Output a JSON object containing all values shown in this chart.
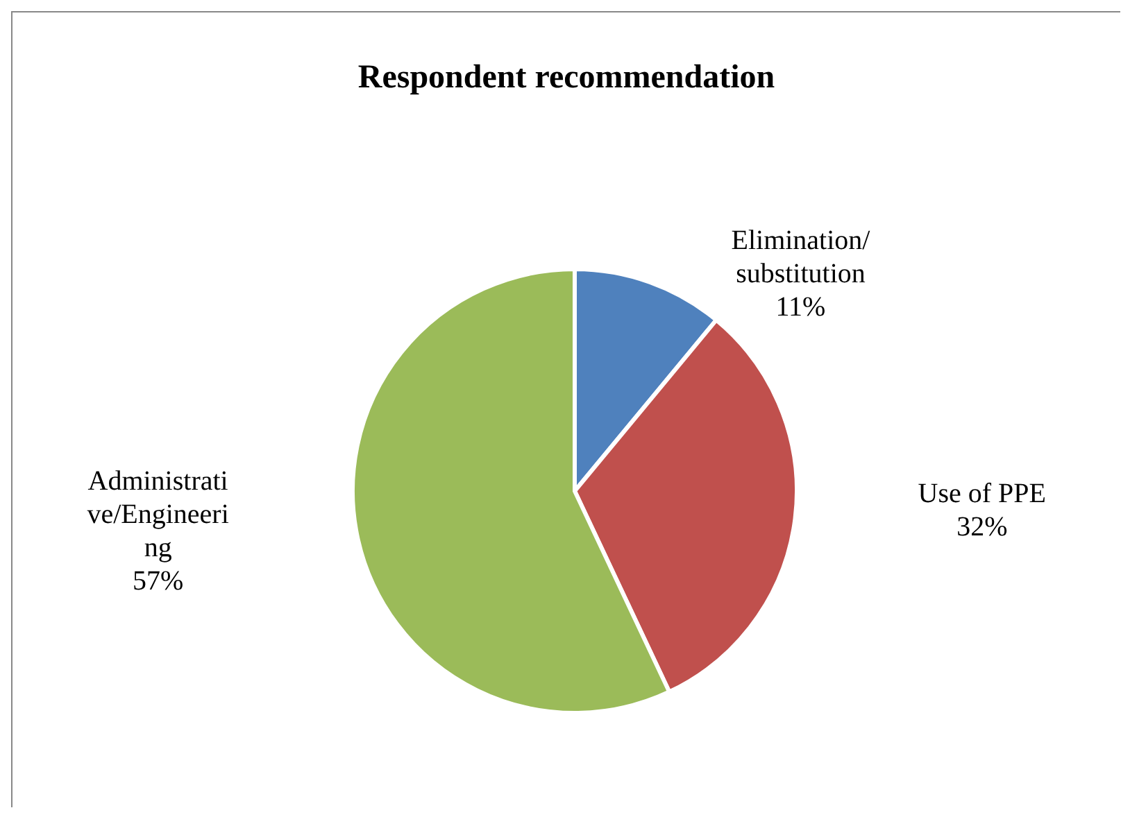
{
  "chart_data": {
    "type": "pie",
    "title": "Respondent recommendation",
    "categories": [
      "Elimination/substitution",
      "Use of PPE",
      "Administrative/Engineering"
    ],
    "values": [
      11,
      32,
      57
    ],
    "value_labels": [
      "11%",
      "32%",
      "57%"
    ],
    "colors": [
      "#4f81bd",
      "#c0504d",
      "#9bbb59"
    ]
  }
}
